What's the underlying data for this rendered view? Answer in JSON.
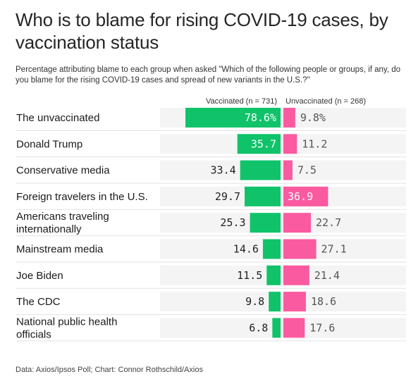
{
  "title": "Who is to blame for rising COVID-19 cases, by vaccination status",
  "subtitle": "Percentage attributing blame to each group when asked \"Which of the following people or groups, if any, do you blame for the rising COVID-19 cases and spread of new variants in the U.S.?\"",
  "legend": {
    "vaccinated": "Vaccinated (n = 731)",
    "unvaccinated": "Unvaccinated (n = 268)"
  },
  "footer": "Data: Axios/Ipsos Poll; Chart: Connor Rothschild/Axios",
  "colors": {
    "vaccinated": "#10c36a",
    "unvaccinated": "#fa5aa0",
    "row_background": "#f4f4f4"
  },
  "chart_data": {
    "type": "bar",
    "orientation": "horizontal-diverging",
    "categories": [
      [
        "The unvaccinated"
      ],
      [
        "Donald Trump"
      ],
      [
        "Conservative media"
      ],
      [
        "Foreign travelers in the U.S."
      ],
      [
        "Americans traveling",
        "internationally"
      ],
      [
        "Mainstream media"
      ],
      [
        "Joe Biden"
      ],
      [
        "The CDC"
      ],
      [
        "National public health",
        "officials"
      ]
    ],
    "series": [
      {
        "name": "Vaccinated (n = 731)",
        "values": [
          78.6,
          35.7,
          33.4,
          29.7,
          25.3,
          14.6,
          11.5,
          9.8,
          6.8
        ],
        "labels": [
          "78.6%",
          "35.7",
          "33.4",
          "29.7",
          "25.3",
          "14.6",
          "11.5",
          "9.8",
          "6.8"
        ]
      },
      {
        "name": "Unvaccinated (n = 268)",
        "values": [
          9.8,
          11.2,
          7.5,
          36.9,
          22.7,
          27.1,
          21.4,
          18.6,
          17.6
        ],
        "labels": [
          "9.8%",
          "11.2",
          "7.5",
          "36.9",
          "22.7",
          "27.1",
          "21.4",
          "18.6",
          "17.6"
        ]
      }
    ],
    "xlim": [
      0,
      100
    ]
  }
}
